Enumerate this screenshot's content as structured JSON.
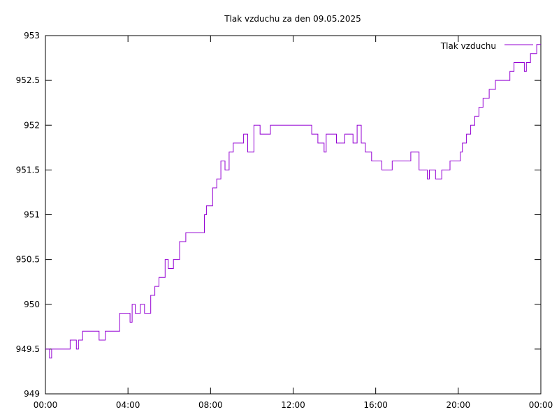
{
  "chart_data": {
    "type": "line",
    "title": "Tlak vzduchu za den 09.05.2025",
    "xlabel": "",
    "ylabel": "",
    "x_unit": "hours since 00:00 of 09.05.2025",
    "xlim": [
      0,
      24
    ],
    "ylim": [
      949,
      953
    ],
    "x_ticks": [
      {
        "value": 0,
        "label": "00:00"
      },
      {
        "value": 4,
        "label": "04:00"
      },
      {
        "value": 8,
        "label": "08:00"
      },
      {
        "value": 12,
        "label": "12:00"
      },
      {
        "value": 16,
        "label": "16:00"
      },
      {
        "value": 20,
        "label": "20:00"
      },
      {
        "value": 24,
        "label": "00:00"
      }
    ],
    "y_ticks": [
      {
        "value": 949,
        "label": "949"
      },
      {
        "value": 949.5,
        "label": "949.5"
      },
      {
        "value": 950,
        "label": "950"
      },
      {
        "value": 950.5,
        "label": "950.5"
      },
      {
        "value": 951,
        "label": "951"
      },
      {
        "value": 951.5,
        "label": "951.5"
      },
      {
        "value": 952,
        "label": "952"
      },
      {
        "value": 952.5,
        "label": "952.5"
      },
      {
        "value": 953,
        "label": "953"
      }
    ],
    "grid": false,
    "legend": {
      "position": "top-right"
    },
    "series": [
      {
        "name": "Tlak vzduchu",
        "color": "#9400d3",
        "step": true,
        "x": [
          0,
          0.2,
          0.3,
          0.4,
          1.2,
          1.5,
          1.6,
          1.7,
          1.8,
          1.9,
          2.6,
          2.9,
          3.2,
          3.6,
          4.1,
          4.2,
          4.35,
          4.6,
          4.8,
          5.1,
          5.3,
          5.5,
          5.8,
          5.95,
          6.2,
          6.5,
          6.8,
          7.4,
          7.7,
          7.8,
          8.1,
          8.3,
          8.5,
          8.7,
          8.9,
          9.1,
          9.4,
          9.6,
          9.8,
          10.1,
          10.4,
          10.9,
          11.5,
          12.1,
          12.9,
          13.2,
          13.5,
          13.6,
          14.1,
          14.5,
          14.9,
          15.1,
          15.3,
          15.5,
          15.8,
          16.1,
          16.3,
          16.8,
          17.5,
          17.7,
          18.1,
          18.2,
          18.5,
          18.6,
          18.9,
          19.2,
          19.6,
          20.1,
          20.2,
          20.4,
          20.6,
          20.8,
          21.0,
          21.2,
          21.5,
          21.8,
          22.5,
          22.6,
          22.7,
          23.2,
          23.3,
          23.5,
          23.6,
          23.8,
          24
        ],
        "y": [
          949.5,
          949.4,
          949.5,
          949.5,
          949.6,
          949.5,
          949.6,
          949.6,
          949.7,
          949.7,
          949.6,
          949.7,
          949.7,
          949.9,
          949.8,
          950.0,
          949.9,
          950.0,
          949.9,
          950.1,
          950.2,
          950.3,
          950.5,
          950.4,
          950.5,
          950.7,
          950.8,
          950.8,
          951.0,
          951.1,
          951.3,
          951.4,
          951.6,
          951.5,
          951.7,
          951.8,
          951.8,
          951.9,
          951.7,
          952.0,
          951.9,
          952.0,
          952.0,
          952.0,
          951.9,
          951.8,
          951.7,
          951.9,
          951.8,
          951.9,
          951.8,
          952.0,
          951.8,
          951.7,
          951.6,
          951.6,
          951.5,
          951.6,
          951.6,
          951.7,
          951.5,
          951.5,
          951.4,
          951.5,
          951.4,
          951.5,
          951.6,
          951.7,
          951.8,
          951.9,
          952.0,
          952.1,
          952.2,
          952.3,
          952.4,
          952.5,
          952.6,
          952.6,
          952.7,
          952.6,
          952.7,
          952.8,
          952.8,
          952.9,
          952.9
        ]
      }
    ]
  }
}
